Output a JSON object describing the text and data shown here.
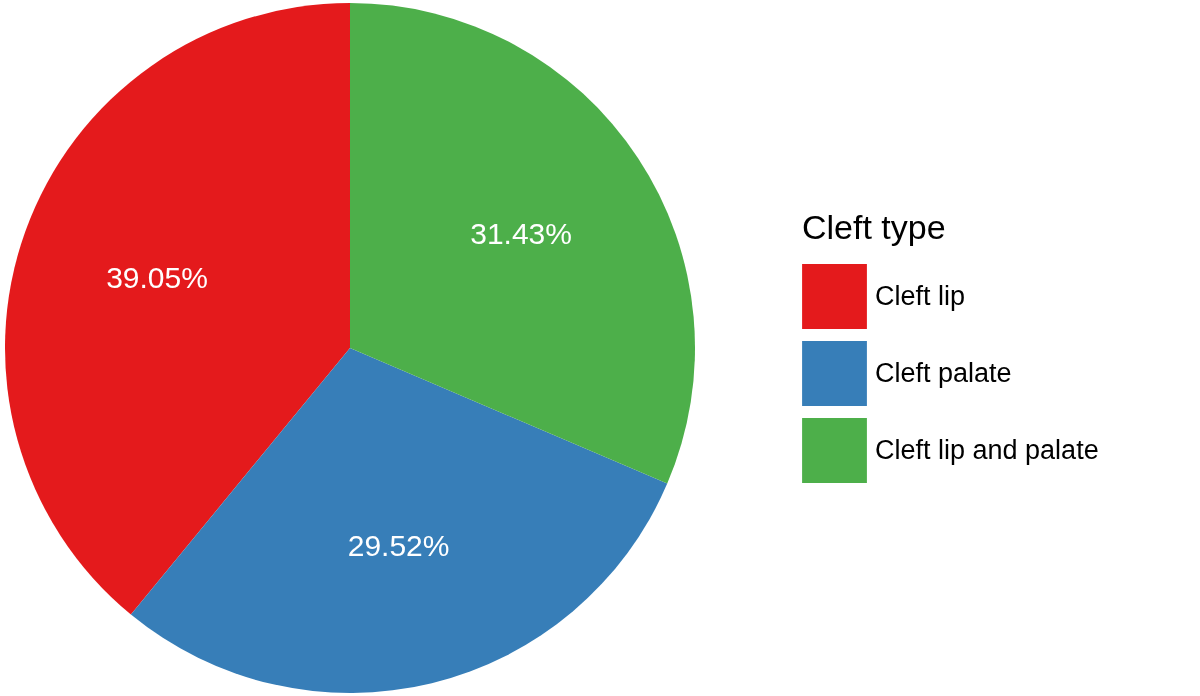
{
  "chart_data": {
    "type": "pie",
    "legend_title": "Cleft type",
    "legend": "right",
    "categories": [
      "Cleft lip",
      "Cleft palate",
      "Cleft lip and palate"
    ],
    "values": [
      39.05,
      29.52,
      31.43
    ],
    "colors": [
      "#e41a1c",
      "#377eb8",
      "#4daf4a"
    ],
    "value_labels": [
      "39.05%",
      "29.52%",
      "31.43%"
    ]
  }
}
